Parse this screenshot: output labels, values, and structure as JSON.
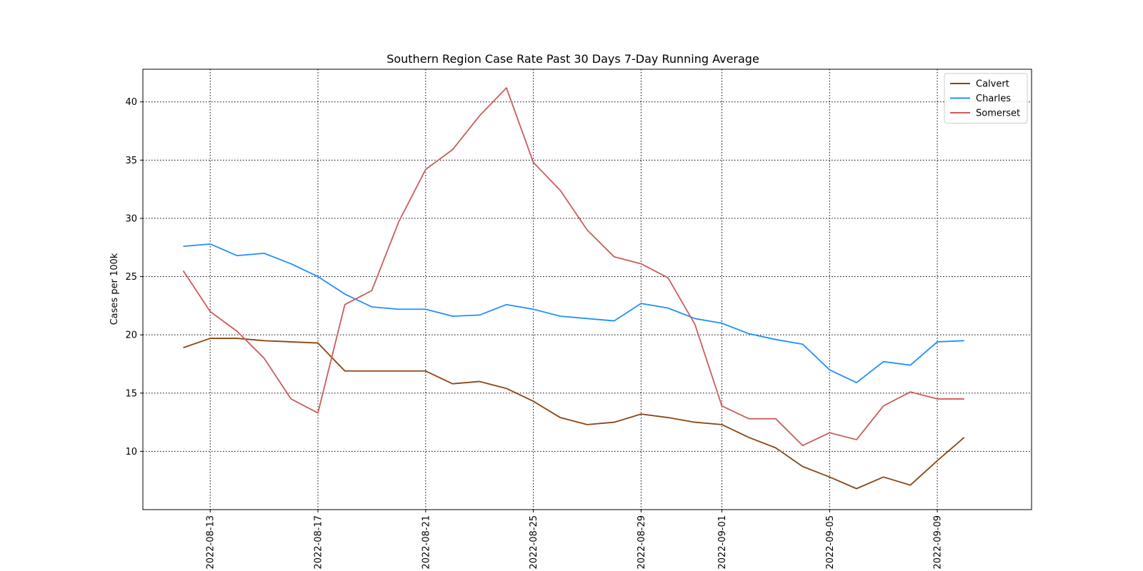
{
  "chart_data": {
    "type": "line",
    "title": "Southern Region Case Rate  Past 30 Days 7-Day Running Average",
    "xlabel": "",
    "ylabel": "Cases per 100k",
    "x": [
      "2022-08-12",
      "2022-08-13",
      "2022-08-14",
      "2022-08-15",
      "2022-08-16",
      "2022-08-17",
      "2022-08-18",
      "2022-08-19",
      "2022-08-20",
      "2022-08-21",
      "2022-08-22",
      "2022-08-23",
      "2022-08-24",
      "2022-08-25",
      "2022-08-26",
      "2022-08-27",
      "2022-08-28",
      "2022-08-29",
      "2022-08-30",
      "2022-08-31",
      "2022-09-01",
      "2022-09-02",
      "2022-09-03",
      "2022-09-04",
      "2022-09-05",
      "2022-09-06",
      "2022-09-07",
      "2022-09-08",
      "2022-09-09",
      "2022-09-10",
      "2022-09-11"
    ],
    "x_ticks": [
      "2022-08-13",
      "2022-08-17",
      "2022-08-21",
      "2022-08-25",
      "2022-08-29",
      "2022-09-01",
      "2022-09-05",
      "2022-09-09"
    ],
    "y_ticks": [
      10,
      15,
      20,
      25,
      30,
      35,
      40
    ],
    "ylim": [
      5.0,
      42.8
    ],
    "grid": true,
    "legend_position": "top-right",
    "series": [
      {
        "name": "Calvert",
        "color": "#8B4513",
        "values": [
          18.9,
          19.7,
          19.7,
          19.5,
          19.4,
          19.3,
          16.9,
          16.9,
          16.9,
          16.9,
          15.8,
          16.0,
          15.4,
          14.3,
          12.9,
          12.3,
          12.5,
          13.2,
          12.9,
          12.5,
          12.3,
          11.2,
          10.3,
          8.7,
          7.8,
          6.8,
          7.8,
          7.1,
          9.2,
          11.2,
          null
        ]
      },
      {
        "name": "Charles",
        "color": "#1E90FF",
        "values": [
          27.6,
          27.8,
          26.8,
          27.0,
          26.1,
          25.0,
          23.5,
          22.4,
          22.2,
          22.2,
          21.6,
          21.7,
          22.6,
          22.2,
          21.6,
          21.4,
          21.2,
          22.7,
          22.3,
          21.4,
          21.0,
          20.1,
          19.6,
          19.2,
          17.0,
          15.9,
          17.7,
          17.4,
          19.4,
          19.5,
          null
        ]
      },
      {
        "name": "Somerset",
        "color": "#CD5C5C",
        "values": [
          25.5,
          22.0,
          20.3,
          18.0,
          14.5,
          13.3,
          22.6,
          23.8,
          29.7,
          34.2,
          35.9,
          38.8,
          41.2,
          34.8,
          32.4,
          29.0,
          26.7,
          26.1,
          24.9,
          20.9,
          13.9,
          12.8,
          12.8,
          10.5,
          11.6,
          11.0,
          13.9,
          15.1,
          14.5,
          14.5,
          null
        ]
      }
    ]
  }
}
